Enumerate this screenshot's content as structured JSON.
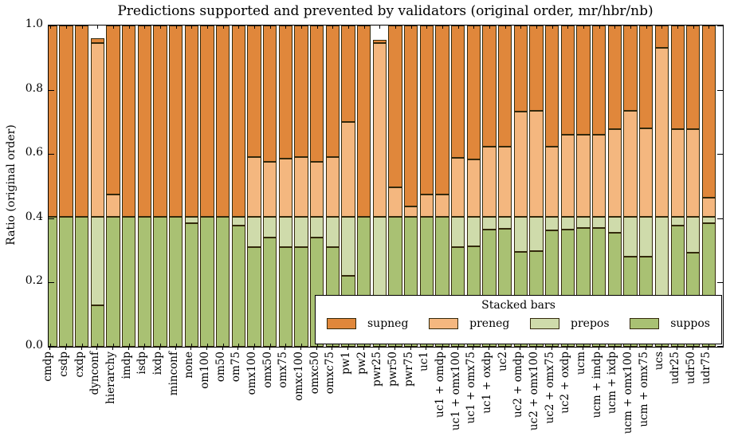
{
  "figure": {
    "title": "Predictions supported and prevented by validators (original order, mr/hbr/nb)",
    "ylabel": "Ratio (original order)"
  },
  "chart_data": {
    "type": "bar",
    "subtype": "stacked-vertical",
    "title": "Predictions supported and prevented by validators (original order, mr/hbr/nb)",
    "xlabel": "",
    "ylabel": "Ratio (original order)",
    "ylim": [
      0.0,
      1.0
    ],
    "ytick_labels": [
      "0.0",
      "0.2",
      "0.4",
      "0.6",
      "0.8",
      "1.0"
    ],
    "yticks": [
      0.0,
      0.2,
      0.4,
      0.6,
      0.8,
      1.0
    ],
    "grid": false,
    "bar_edge_color": "#33290c",
    "categories": [
      "cmdp",
      "csdp",
      "cxdp",
      "dynconf",
      "hierarchy",
      "imdp",
      "isdp",
      "ixdp",
      "minconf",
      "none",
      "om100",
      "om50",
      "om75",
      "omx100",
      "omx50",
      "omx75",
      "omxc100",
      "omxc50",
      "omxc75",
      "pw1",
      "pw2",
      "pwr25",
      "pwr50",
      "pwr75",
      "uc1",
      "uc1 + omdp",
      "uc1 + omx100",
      "uc1 + omx75",
      "uc1 + oxdp",
      "uc2",
      "uc2 + omdp",
      "uc2 + omx100",
      "uc2 + omx75",
      "uc2 + oxdp",
      "ucm",
      "ucm + imdp",
      "ucm + ixdp",
      "ucm + omx100",
      "ucm + omx75",
      "ucs",
      "udr25",
      "udr50",
      "udr75"
    ],
    "series": [
      {
        "name": "suppos",
        "color": "#a9c173",
        "values": [
          0.405,
          0.405,
          0.405,
          0.13,
          0.405,
          0.405,
          0.405,
          0.405,
          0.405,
          0.385,
          0.405,
          0.405,
          0.376,
          0.31,
          0.34,
          0.31,
          0.31,
          0.34,
          0.31,
          0.222,
          0.405,
          0.01,
          0.405,
          0.405,
          0.405,
          0.405,
          0.31,
          0.313,
          0.366,
          0.367,
          0.295,
          0.297,
          0.363,
          0.365,
          0.37,
          0.37,
          0.355,
          0.28,
          0.28,
          0.01,
          0.376,
          0.293,
          0.384
        ]
      },
      {
        "name": "prepos",
        "color": "#cfdbab",
        "values": [
          0,
          0,
          0,
          0.275,
          0,
          0,
          0,
          0,
          0,
          0.02,
          0,
          0,
          0.029,
          0.095,
          0.065,
          0.095,
          0.095,
          0.065,
          0.095,
          0.183,
          0,
          0.395,
          0,
          0,
          0,
          0,
          0.095,
          0.092,
          0.039,
          0.038,
          0.11,
          0.108,
          0.042,
          0.04,
          0.035,
          0.035,
          0.05,
          0.125,
          0.125,
          0.395,
          0.029,
          0.112,
          0.021
        ]
      },
      {
        "name": "preneg",
        "color": "#f4b77f",
        "values": [
          0,
          0,
          0,
          0.54,
          0.07,
          0,
          0,
          0,
          0,
          0,
          0,
          0,
          0,
          0.185,
          0.17,
          0.18,
          0.185,
          0.17,
          0.185,
          0.295,
          0,
          0.54,
          0.091,
          0.033,
          0.07,
          0.07,
          0.182,
          0.178,
          0.218,
          0.217,
          0.328,
          0.33,
          0.219,
          0.255,
          0.255,
          0.255,
          0.272,
          0.33,
          0.275,
          0.525,
          0.272,
          0.272,
          0.058
        ]
      },
      {
        "name": "supneg",
        "color": "#e0873b",
        "values": [
          0.595,
          0.595,
          0.595,
          0.015,
          0.525,
          0.595,
          0.595,
          0.595,
          0.595,
          0.595,
          0.595,
          0.595,
          0.595,
          0.41,
          0.425,
          0.415,
          0.41,
          0.425,
          0.41,
          0.3,
          0.595,
          0.01,
          0.504,
          0.562,
          0.525,
          0.525,
          0.413,
          0.417,
          0.377,
          0.378,
          0.267,
          0.265,
          0.376,
          0.34,
          0.34,
          0.34,
          0.323,
          0.265,
          0.32,
          0.07,
          0.323,
          0.323,
          0.537
        ]
      }
    ],
    "legend": {
      "title": "Stacked bars",
      "position": "lower right",
      "entries": [
        {
          "label": "supneg",
          "color": "#e0873b"
        },
        {
          "label": "preneg",
          "color": "#f4b77f"
        },
        {
          "label": "prepos",
          "color": "#cfdbab"
        },
        {
          "label": "suppos",
          "color": "#a9c173"
        }
      ]
    }
  }
}
